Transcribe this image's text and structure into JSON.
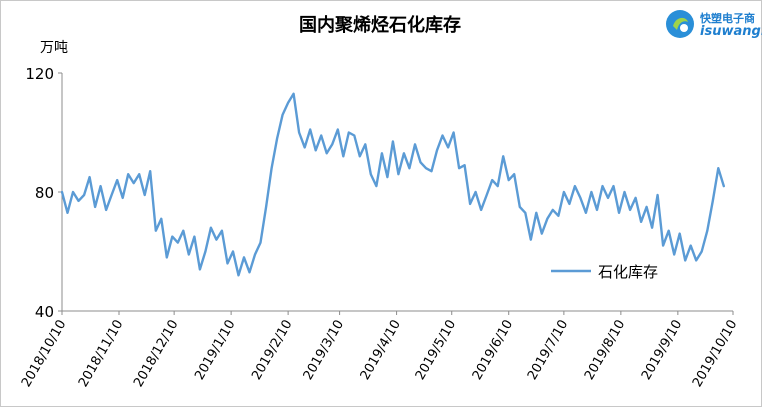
{
  "chart_data": {
    "type": "line",
    "title": "国内聚烯烃石化库存",
    "ylabel": "万吨",
    "ylim": [
      40,
      120
    ],
    "yticks": [
      "40",
      "80",
      "120"
    ],
    "legend": {
      "position": "bottom-right",
      "label": "石化库存"
    },
    "color": "#5b9bd5",
    "grid": false,
    "xticks": [
      "2018/10/10",
      "2018/11/10",
      "2018/12/10",
      "2019/1/10",
      "2019/2/10",
      "2019/3/10",
      "2019/4/10",
      "2019/5/10",
      "2019/6/10",
      "2019/7/10",
      "2019/8/10",
      "2019/9/10",
      "2019/10/10"
    ],
    "series": [
      {
        "name": "石化库存",
        "points": [
          [
            "2018-10-10",
            80
          ],
          [
            "2018-10-13",
            73
          ],
          [
            "2018-10-16",
            80
          ],
          [
            "2018-10-19",
            77
          ],
          [
            "2018-10-22",
            79
          ],
          [
            "2018-10-25",
            85
          ],
          [
            "2018-10-28",
            75
          ],
          [
            "2018-10-31",
            82
          ],
          [
            "2018-11-03",
            74
          ],
          [
            "2018-11-06",
            79
          ],
          [
            "2018-11-09",
            84
          ],
          [
            "2018-11-12",
            78
          ],
          [
            "2018-11-15",
            86
          ],
          [
            "2018-11-18",
            83
          ],
          [
            "2018-11-21",
            86
          ],
          [
            "2018-11-24",
            79
          ],
          [
            "2018-11-27",
            87
          ],
          [
            "2018-11-30",
            67
          ],
          [
            "2018-12-03",
            71
          ],
          [
            "2018-12-06",
            58
          ],
          [
            "2018-12-09",
            65
          ],
          [
            "2018-12-12",
            63
          ],
          [
            "2018-12-15",
            67
          ],
          [
            "2018-12-18",
            59
          ],
          [
            "2018-12-21",
            65
          ],
          [
            "2018-12-24",
            54
          ],
          [
            "2018-12-27",
            60
          ],
          [
            "2018-12-30",
            68
          ],
          [
            "2019-01-02",
            64
          ],
          [
            "2019-01-05",
            67
          ],
          [
            "2019-01-08",
            56
          ],
          [
            "2019-01-11",
            60
          ],
          [
            "2019-01-14",
            52
          ],
          [
            "2019-01-17",
            58
          ],
          [
            "2019-01-20",
            53
          ],
          [
            "2019-01-23",
            59
          ],
          [
            "2019-01-26",
            63
          ],
          [
            "2019-01-29",
            75
          ],
          [
            "2019-02-01",
            88
          ],
          [
            "2019-02-04",
            98
          ],
          [
            "2019-02-07",
            106
          ],
          [
            "2019-02-10",
            110
          ],
          [
            "2019-02-13",
            113
          ],
          [
            "2019-02-16",
            100
          ],
          [
            "2019-02-19",
            95
          ],
          [
            "2019-02-22",
            101
          ],
          [
            "2019-02-25",
            94
          ],
          [
            "2019-02-28",
            99
          ],
          [
            "2019-03-03",
            93
          ],
          [
            "2019-03-06",
            96
          ],
          [
            "2019-03-09",
            101
          ],
          [
            "2019-03-12",
            92
          ],
          [
            "2019-03-15",
            100
          ],
          [
            "2019-03-18",
            99
          ],
          [
            "2019-03-21",
            92
          ],
          [
            "2019-03-24",
            96
          ],
          [
            "2019-03-27",
            86
          ],
          [
            "2019-03-30",
            82
          ],
          [
            "2019-04-02",
            93
          ],
          [
            "2019-04-05",
            85
          ],
          [
            "2019-04-08",
            97
          ],
          [
            "2019-04-11",
            86
          ],
          [
            "2019-04-14",
            93
          ],
          [
            "2019-04-17",
            88
          ],
          [
            "2019-04-20",
            96
          ],
          [
            "2019-04-23",
            90
          ],
          [
            "2019-04-26",
            88
          ],
          [
            "2019-04-29",
            87
          ],
          [
            "2019-05-02",
            94
          ],
          [
            "2019-05-05",
            99
          ],
          [
            "2019-05-08",
            95
          ],
          [
            "2019-05-11",
            100
          ],
          [
            "2019-05-14",
            88
          ],
          [
            "2019-05-17",
            89
          ],
          [
            "2019-05-20",
            76
          ],
          [
            "2019-05-23",
            80
          ],
          [
            "2019-05-26",
            74
          ],
          [
            "2019-05-29",
            79
          ],
          [
            "2019-06-01",
            84
          ],
          [
            "2019-06-04",
            82
          ],
          [
            "2019-06-07",
            92
          ],
          [
            "2019-06-10",
            84
          ],
          [
            "2019-06-13",
            86
          ],
          [
            "2019-06-16",
            75
          ],
          [
            "2019-06-19",
            73
          ],
          [
            "2019-06-22",
            64
          ],
          [
            "2019-06-25",
            73
          ],
          [
            "2019-06-28",
            66
          ],
          [
            "2019-07-01",
            71
          ],
          [
            "2019-07-04",
            74
          ],
          [
            "2019-07-07",
            72
          ],
          [
            "2019-07-10",
            80
          ],
          [
            "2019-07-13",
            76
          ],
          [
            "2019-07-16",
            82
          ],
          [
            "2019-07-19",
            78
          ],
          [
            "2019-07-22",
            73
          ],
          [
            "2019-07-25",
            80
          ],
          [
            "2019-07-28",
            74
          ],
          [
            "2019-07-31",
            82
          ],
          [
            "2019-08-03",
            78
          ],
          [
            "2019-08-06",
            82
          ],
          [
            "2019-08-09",
            73
          ],
          [
            "2019-08-12",
            80
          ],
          [
            "2019-08-15",
            74
          ],
          [
            "2019-08-18",
            78
          ],
          [
            "2019-08-21",
            70
          ],
          [
            "2019-08-24",
            75
          ],
          [
            "2019-08-27",
            68
          ],
          [
            "2019-08-30",
            79
          ],
          [
            "2019-09-02",
            62
          ],
          [
            "2019-09-05",
            67
          ],
          [
            "2019-09-08",
            59
          ],
          [
            "2019-09-11",
            66
          ],
          [
            "2019-09-14",
            57
          ],
          [
            "2019-09-17",
            62
          ],
          [
            "2019-09-20",
            57
          ],
          [
            "2019-09-23",
            60
          ],
          [
            "2019-09-26",
            67
          ],
          [
            "2019-09-29",
            77
          ],
          [
            "2019-10-02",
            88
          ],
          [
            "2019-10-05",
            82
          ]
        ]
      }
    ]
  },
  "logo": {
    "cn_text": "快塑电子商",
    "url_text": "isuwang.co"
  }
}
